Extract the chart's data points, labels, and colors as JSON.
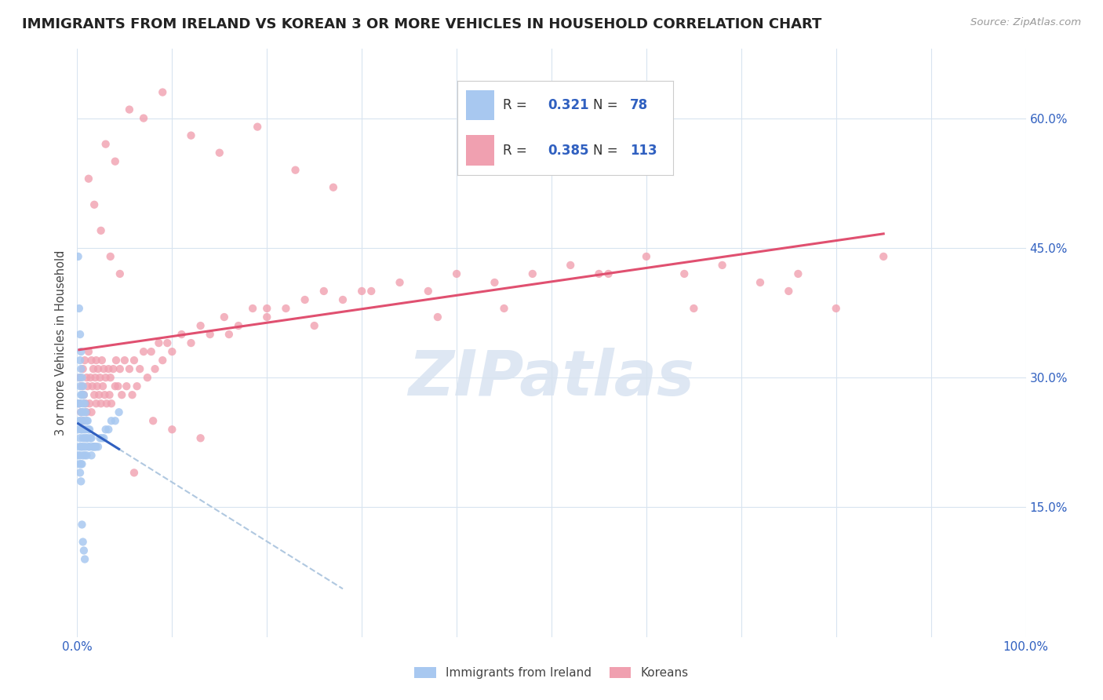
{
  "title": "IMMIGRANTS FROM IRELAND VS KOREAN 3 OR MORE VEHICLES IN HOUSEHOLD CORRELATION CHART",
  "source": "Source: ZipAtlas.com",
  "ylabel": "3 or more Vehicles in Household",
  "legend_label1": "Immigrants from Ireland",
  "legend_label2": "Koreans",
  "R1": 0.321,
  "N1": 78,
  "R2": 0.385,
  "N2": 113,
  "color1": "#a8c8f0",
  "color2": "#f0a0b0",
  "line_color1": "#3060c0",
  "line_color2": "#e05070",
  "line_dash_color": "#b0c8e0",
  "xlim": [
    0.0,
    1.0
  ],
  "ylim": [
    0.0,
    0.68
  ],
  "ytick_vals": [
    0.15,
    0.3,
    0.45,
    0.6
  ],
  "ytick_labels": [
    "15.0%",
    "30.0%",
    "45.0%",
    "60.0%"
  ],
  "xtick_vals": [
    0.0,
    0.1,
    0.2,
    0.3,
    0.4,
    0.5,
    0.6,
    0.7,
    0.8,
    0.9,
    1.0
  ],
  "xtick_show": [
    "0.0%",
    "",
    "",
    "",
    "",
    "",
    "",
    "",
    "",
    "",
    "100.0%"
  ],
  "watermark_text": "ZIPatlas",
  "watermark_color": "#c8d8ec",
  "grid_color": "#d8e4f0",
  "title_fontsize": 13,
  "axis_label_color": "#3060c0",
  "ireland_x": [
    0.001,
    0.001,
    0.001,
    0.002,
    0.002,
    0.002,
    0.002,
    0.002,
    0.003,
    0.003,
    0.003,
    0.003,
    0.003,
    0.003,
    0.003,
    0.004,
    0.004,
    0.004,
    0.004,
    0.004,
    0.004,
    0.004,
    0.005,
    0.005,
    0.005,
    0.005,
    0.005,
    0.005,
    0.006,
    0.006,
    0.006,
    0.006,
    0.006,
    0.007,
    0.007,
    0.007,
    0.007,
    0.008,
    0.008,
    0.008,
    0.008,
    0.009,
    0.009,
    0.009,
    0.01,
    0.01,
    0.01,
    0.011,
    0.011,
    0.012,
    0.012,
    0.013,
    0.013,
    0.014,
    0.015,
    0.015,
    0.016,
    0.017,
    0.018,
    0.019,
    0.02,
    0.022,
    0.024,
    0.026,
    0.028,
    0.03,
    0.033,
    0.036,
    0.04,
    0.044,
    0.001,
    0.002,
    0.003,
    0.004,
    0.005,
    0.006,
    0.007,
    0.008
  ],
  "ireland_y": [
    0.27,
    0.24,
    0.21,
    0.3,
    0.27,
    0.25,
    0.22,
    0.2,
    0.32,
    0.29,
    0.27,
    0.25,
    0.23,
    0.21,
    0.19,
    0.31,
    0.28,
    0.26,
    0.24,
    0.22,
    0.2,
    0.18,
    0.3,
    0.28,
    0.26,
    0.24,
    0.22,
    0.2,
    0.29,
    0.27,
    0.25,
    0.23,
    0.21,
    0.28,
    0.26,
    0.24,
    0.22,
    0.27,
    0.25,
    0.23,
    0.21,
    0.26,
    0.24,
    0.22,
    0.25,
    0.23,
    0.21,
    0.25,
    0.23,
    0.24,
    0.22,
    0.24,
    0.22,
    0.23,
    0.23,
    0.21,
    0.22,
    0.22,
    0.22,
    0.22,
    0.22,
    0.22,
    0.23,
    0.23,
    0.23,
    0.24,
    0.24,
    0.25,
    0.25,
    0.26,
    0.44,
    0.38,
    0.35,
    0.33,
    0.13,
    0.11,
    0.1,
    0.09
  ],
  "korean_x": [
    0.002,
    0.003,
    0.004,
    0.005,
    0.006,
    0.006,
    0.007,
    0.008,
    0.009,
    0.01,
    0.01,
    0.011,
    0.012,
    0.013,
    0.014,
    0.015,
    0.015,
    0.016,
    0.017,
    0.018,
    0.019,
    0.02,
    0.02,
    0.021,
    0.022,
    0.023,
    0.024,
    0.025,
    0.026,
    0.027,
    0.028,
    0.029,
    0.03,
    0.031,
    0.033,
    0.034,
    0.035,
    0.036,
    0.038,
    0.04,
    0.041,
    0.043,
    0.045,
    0.047,
    0.05,
    0.052,
    0.055,
    0.058,
    0.06,
    0.063,
    0.066,
    0.07,
    0.074,
    0.078,
    0.082,
    0.086,
    0.09,
    0.095,
    0.1,
    0.11,
    0.12,
    0.13,
    0.14,
    0.155,
    0.17,
    0.185,
    0.2,
    0.22,
    0.24,
    0.26,
    0.28,
    0.31,
    0.34,
    0.37,
    0.4,
    0.44,
    0.48,
    0.52,
    0.56,
    0.6,
    0.64,
    0.68,
    0.72,
    0.76,
    0.8,
    0.85,
    0.012,
    0.018,
    0.025,
    0.035,
    0.045,
    0.06,
    0.08,
    0.1,
    0.13,
    0.16,
    0.2,
    0.25,
    0.3,
    0.38,
    0.45,
    0.55,
    0.65,
    0.75,
    0.03,
    0.04,
    0.055,
    0.07,
    0.09,
    0.12,
    0.15,
    0.19,
    0.23,
    0.27
  ],
  "korean_y": [
    0.27,
    0.3,
    0.26,
    0.29,
    0.31,
    0.25,
    0.28,
    0.32,
    0.27,
    0.3,
    0.26,
    0.29,
    0.33,
    0.27,
    0.3,
    0.26,
    0.32,
    0.29,
    0.31,
    0.28,
    0.3,
    0.27,
    0.32,
    0.29,
    0.31,
    0.28,
    0.3,
    0.27,
    0.32,
    0.29,
    0.31,
    0.28,
    0.3,
    0.27,
    0.31,
    0.28,
    0.3,
    0.27,
    0.31,
    0.29,
    0.32,
    0.29,
    0.31,
    0.28,
    0.32,
    0.29,
    0.31,
    0.28,
    0.32,
    0.29,
    0.31,
    0.33,
    0.3,
    0.33,
    0.31,
    0.34,
    0.32,
    0.34,
    0.33,
    0.35,
    0.34,
    0.36,
    0.35,
    0.37,
    0.36,
    0.38,
    0.37,
    0.38,
    0.39,
    0.4,
    0.39,
    0.4,
    0.41,
    0.4,
    0.42,
    0.41,
    0.42,
    0.43,
    0.42,
    0.44,
    0.42,
    0.43,
    0.41,
    0.42,
    0.38,
    0.44,
    0.53,
    0.5,
    0.47,
    0.44,
    0.42,
    0.19,
    0.25,
    0.24,
    0.23,
    0.35,
    0.38,
    0.36,
    0.4,
    0.37,
    0.38,
    0.42,
    0.38,
    0.4,
    0.57,
    0.55,
    0.61,
    0.6,
    0.63,
    0.58,
    0.56,
    0.59,
    0.54,
    0.52
  ]
}
